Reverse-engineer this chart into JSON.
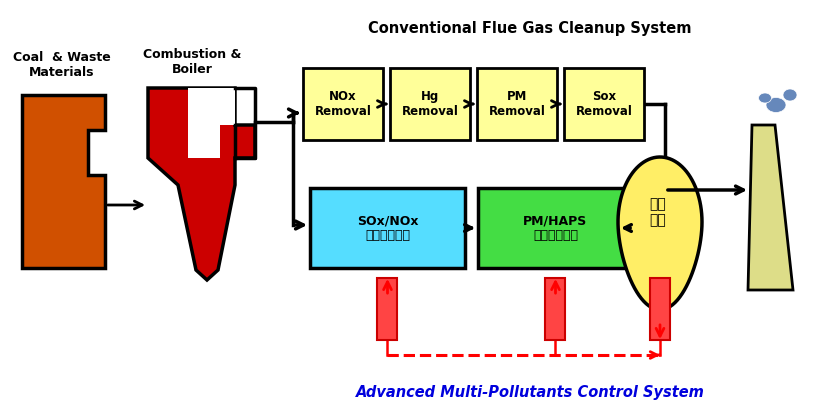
{
  "title_conventional": "Conventional Flue Gas Cleanup System",
  "title_advanced": "Advanced Multi-Pollutants Control System",
  "label_coal": "Coal  & Waste\nMaterials",
  "label_combustion": "Combustion &\nBoiler",
  "boxes_top": [
    "NOx\nRemoval",
    "Hg\nRemoval",
    "PM\nRemoval",
    "Sox\nRemoval"
  ],
  "box_bottom_left": "SOx/NOx\n동시고도처리",
  "box_bottom_right": "PM/HAPS\n동시고도처리",
  "box_leak": "누출\n감지",
  "color_coal": "#D05000",
  "color_boiler": "#CC0000",
  "color_top_box": "#FFFF99",
  "color_bottom_left": "#55DDFF",
  "color_bottom_right": "#44DD44",
  "color_leak": "#FFEE66",
  "color_chimney": "#DDDD88",
  "color_smoke": "#6688BB",
  "color_red": "#FF0000",
  "color_blue": "#0000DD",
  "color_black": "#000000",
  "color_white": "#FFFFFF",
  "bg": "#FFFFFF"
}
